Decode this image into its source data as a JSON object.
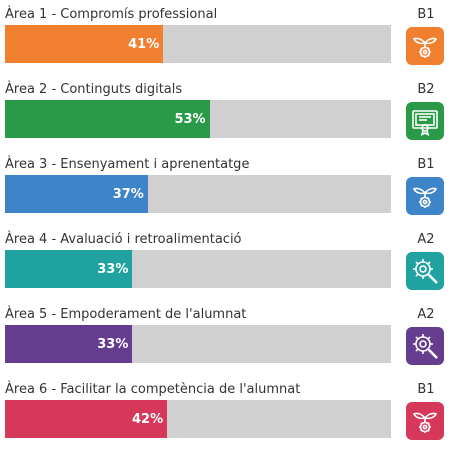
{
  "areas": [
    {
      "label": "Àrea 1 - Compromís professional",
      "level": "B1",
      "percent": 41,
      "percent_text": "41%",
      "color": "#f08030",
      "icon": "seedling-gear-icon"
    },
    {
      "label": "Àrea 2 - Continguts digitals",
      "level": "B2",
      "percent": 53,
      "percent_text": "53%",
      "color": "#2a9a48",
      "icon": "certificate-icon"
    },
    {
      "label": "Àrea 3 - Ensenyament i aprenentatge",
      "level": "B1",
      "percent": 37,
      "percent_text": "37%",
      "color": "#3d84c8",
      "icon": "seedling-gear-icon"
    },
    {
      "label": "Àrea 4 - Avaluació i retroalimentació",
      "level": "A2",
      "percent": 33,
      "percent_text": "33%",
      "color": "#20a3a0",
      "icon": "gear-magnifier-icon"
    },
    {
      "label": "Àrea 5 - Empoderament de l'alumnat",
      "level": "A2",
      "percent": 33,
      "percent_text": "33%",
      "color": "#663c8f",
      "icon": "gear-magnifier-icon"
    },
    {
      "label": "Àrea 6 - Facilitar la competència de l'alumnat",
      "level": "B1",
      "percent": 42,
      "percent_text": "42%",
      "color": "#d6385a",
      "icon": "seedling-gear-icon"
    }
  ]
}
